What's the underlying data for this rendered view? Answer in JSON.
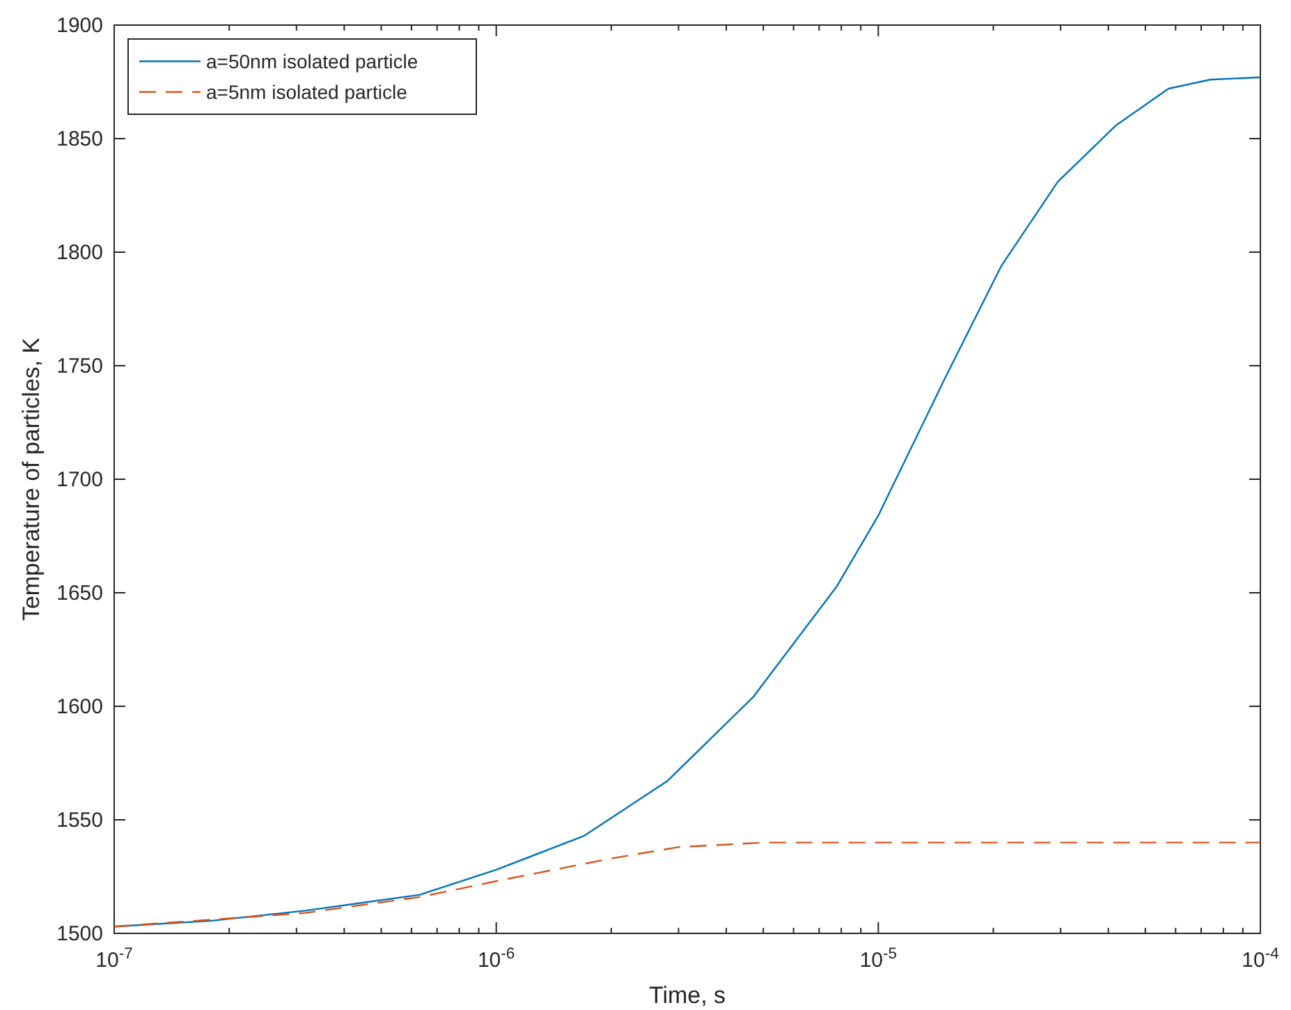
{
  "chart_data": {
    "type": "line",
    "xlabel": "Time, s",
    "ylabel": "Temperature of  particles, K",
    "log": "x",
    "xlim": [
      1e-07,
      0.0001
    ],
    "xticks": [
      {
        "value": 1e-07,
        "label": "10$^{-7}$"
      },
      {
        "value": 1e-06,
        "label": "10$^{-6}$"
      },
      {
        "value": 1e-05,
        "label": "10$^{-5}$"
      },
      {
        "value": 0.0001,
        "label": "10$^{-4}$"
      }
    ],
    "ylim": [
      1500,
      1900
    ],
    "yticks": [
      1500,
      1550,
      1600,
      1650,
      1700,
      1750,
      1800,
      1850,
      1900
    ],
    "legend": "top left",
    "grid": false,
    "series": [
      {
        "name": "a=50nm isolated particle",
        "color": "#0072bd",
        "line_style": "solid",
        "x": [
          1e-07,
          1.78e-07,
          3.16e-07,
          6.3e-07,
          1e-06,
          1.7e-06,
          2.8e-06,
          4.7e-06,
          7.8e-06,
          1e-05,
          1.5e-05,
          2.1e-05,
          2.95e-05,
          4.2e-05,
          5.75e-05,
          7.4e-05,
          0.0001
        ],
        "values": [
          1503,
          1505.5,
          1510,
          1517,
          1528,
          1543,
          1567,
          1604,
          1653,
          1684,
          1745,
          1794,
          1831,
          1856,
          1872,
          1876,
          1877
        ]
      },
      {
        "name": "a=5nm isolated particle",
        "color": "#d95319",
        "line_style": "dashed",
        "x": [
          1e-07,
          3.16e-07,
          6.3e-07,
          1e-06,
          2e-06,
          3e-06,
          5e-06,
          1e-05,
          0.0001
        ],
        "values": [
          1503,
          1509,
          1516,
          1523,
          1533,
          1538,
          1540,
          1540,
          1540
        ]
      }
    ]
  }
}
